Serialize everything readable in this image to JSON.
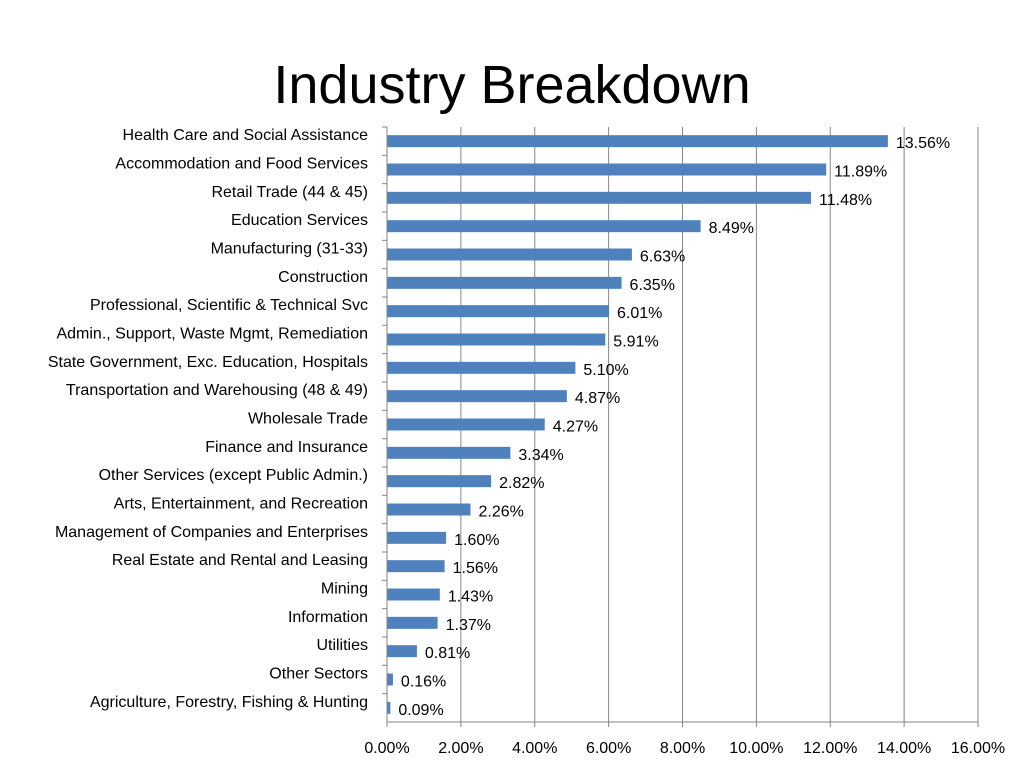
{
  "chart_data": {
    "type": "bar",
    "orientation": "horizontal",
    "title": "Industry Breakdown",
    "categories": [
      "Health Care and Social Assistance",
      "Accommodation and Food Services",
      "Retail Trade (44 & 45)",
      "Education Services",
      "Manufacturing (31-33)",
      "Construction",
      "Professional, Scientific & Technical Svc",
      "Admin., Support, Waste Mgmt, Remediation",
      "State Government, Exc. Education, Hospitals",
      "Transportation and Warehousing (48 & 49)",
      "Wholesale Trade",
      "Finance and Insurance",
      "Other Services (except Public Admin.)",
      "Arts, Entertainment, and Recreation",
      "Management of Companies and Enterprises",
      "Real Estate and Rental and Leasing",
      "Mining",
      "Information",
      "Utilities",
      "Other Sectors",
      "Agriculture, Forestry, Fishing & Hunting"
    ],
    "values": [
      13.56,
      11.89,
      11.48,
      8.49,
      6.63,
      6.35,
      6.01,
      5.91,
      5.1,
      4.87,
      4.27,
      3.34,
      2.82,
      2.26,
      1.6,
      1.56,
      1.43,
      1.37,
      0.81,
      0.16,
      0.09
    ],
    "value_labels": [
      "13.56%",
      "11.89%",
      "11.48%",
      "8.49%",
      "6.63%",
      "6.35%",
      "6.01%",
      "5.91%",
      "5.10%",
      "4.87%",
      "4.27%",
      "3.34%",
      "2.82%",
      "2.26%",
      "1.60%",
      "1.56%",
      "1.43%",
      "1.37%",
      "0.81%",
      "0.16%",
      "0.09%"
    ],
    "xlim": [
      0,
      16
    ],
    "x_ticks": [
      0,
      2,
      4,
      6,
      8,
      10,
      12,
      14,
      16
    ],
    "x_tick_labels": [
      "0.00%",
      "2.00%",
      "4.00%",
      "6.00%",
      "8.00%",
      "10.00%",
      "12.00%",
      "14.00%",
      "16.00%"
    ],
    "grid": "vertical",
    "legend": "none",
    "colors": {
      "bar": "#4F81BD",
      "grid": "#868686",
      "axis": "#868686",
      "text": "#000000"
    }
  }
}
